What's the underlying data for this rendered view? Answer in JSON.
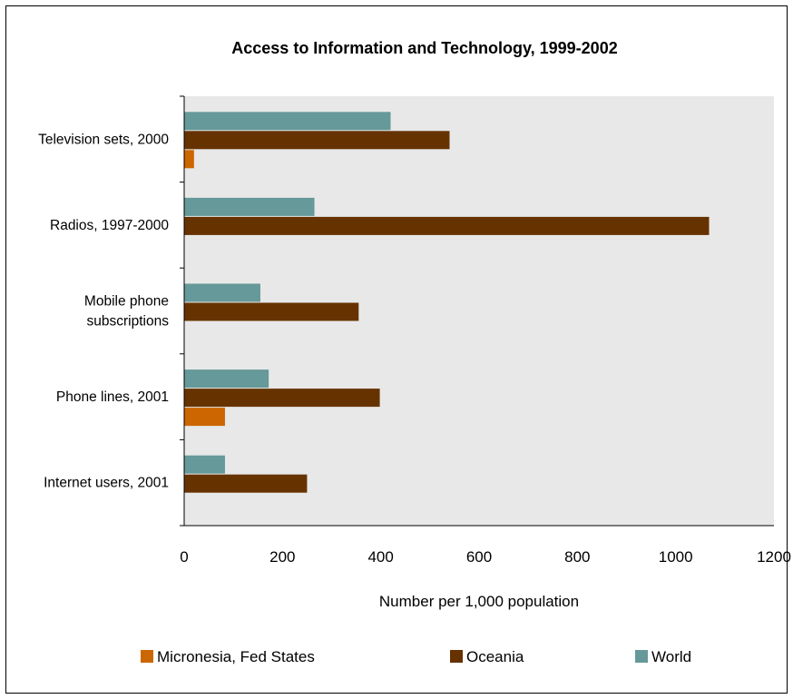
{
  "chart_data": {
    "type": "bar",
    "orientation": "horizontal",
    "title": "Access to Information and Technology, 1999-2002",
    "xlabel": "Number per 1,000 population",
    "ylabel": "",
    "xlim": [
      0,
      1200
    ],
    "xticks": [
      "0",
      "200",
      "400",
      "600",
      "800",
      "1000",
      "1200"
    ],
    "categories": [
      [
        "Television sets, 2000"
      ],
      [
        "Radios, 1997-2000"
      ],
      [
        "Mobile phone",
        "subscriptions"
      ],
      [
        "Phone lines, 2001"
      ],
      [
        "Internet users, 2001"
      ]
    ],
    "series": [
      {
        "name": "World",
        "color": "#669999",
        "values": [
          420,
          265,
          155,
          172,
          83
        ]
      },
      {
        "name": "Oceania",
        "color": "#663300",
        "values": [
          540,
          1068,
          355,
          398,
          250
        ]
      },
      {
        "name": "Micronesia, Fed States",
        "color": "#CC6600",
        "values": [
          20,
          0,
          0,
          83,
          0
        ]
      }
    ],
    "legend_order": [
      "Micronesia, Fed States",
      "Oceania",
      "World"
    ],
    "legend_position": "bottom",
    "plot_background": "#E8E8E8",
    "grid": false
  }
}
